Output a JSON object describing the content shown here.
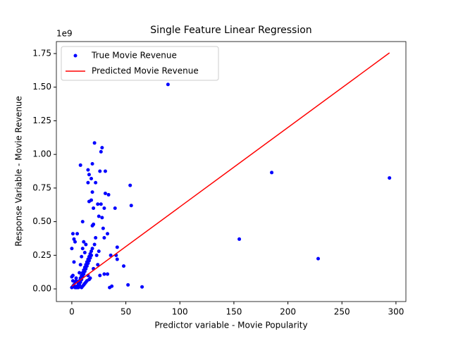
{
  "chart_data": {
    "type": "scatter",
    "title": "Single Feature Linear Regression",
    "x_label": "Predictor variable - Movie Popularity",
    "y_label": "Response Variable - Movie Revenue",
    "y_offset_label": "1e9",
    "xlim": [
      -14.3,
      309.2
    ],
    "ylim": [
      -0.094,
      1.839
    ],
    "xticks": [
      0,
      50,
      100,
      150,
      200,
      250,
      300
    ],
    "yticks": [
      {
        "value": 0,
        "label": "0.00"
      },
      0.25,
      {
        "value": 0.5,
        "label": "0.50"
      },
      0.75,
      {
        "value": 1,
        "label": "1.00"
      },
      1.25,
      {
        "value": 1.5,
        "label": "1.50"
      },
      1.75
    ],
    "legend": "upper left",
    "series": [
      {
        "name": "True Movie Revenue",
        "color": "#0000ff",
        "type": "scatter",
        "x": [
          89,
          185,
          294,
          155,
          228,
          65,
          52,
          54,
          55,
          42,
          41,
          42,
          48,
          40,
          33,
          35,
          37,
          36,
          27,
          28,
          21,
          31,
          26,
          8,
          19,
          15,
          16,
          18,
          22,
          15,
          19,
          31,
          34,
          16,
          18,
          24,
          27,
          30,
          20,
          25,
          28,
          10,
          19,
          20,
          29,
          1,
          5,
          2,
          3,
          22,
          30,
          25,
          30,
          33,
          0,
          2,
          1,
          3,
          0,
          1,
          2,
          4,
          5,
          6,
          7,
          8,
          9,
          10,
          11,
          12,
          13,
          14,
          15,
          16,
          17,
          18,
          19,
          20,
          6,
          7,
          8,
          9,
          10,
          11,
          12,
          13,
          14,
          15,
          16,
          17,
          18,
          4,
          5,
          6,
          7,
          8,
          9,
          10,
          11,
          12,
          13,
          14,
          15,
          9,
          10,
          11,
          12,
          13,
          14,
          16,
          17,
          23,
          24,
          21,
          26,
          0,
          1,
          2,
          3,
          4
        ],
        "values": [
          1.52,
          0.865,
          0.825,
          0.37,
          0.225,
          0.015,
          0.03,
          0.77,
          0.62,
          0.31,
          0.25,
          0.22,
          0.17,
          0.6,
          0.41,
          0.01,
          0.02,
          0.25,
          1.02,
          1.05,
          1.085,
          0.875,
          0.875,
          0.92,
          0.93,
          0.885,
          0.85,
          0.82,
          0.79,
          0.79,
          0.72,
          0.71,
          0.7,
          0.65,
          0.66,
          0.63,
          0.63,
          0.6,
          0.6,
          0.54,
          0.53,
          0.5,
          0.47,
          0.48,
          0.45,
          0.41,
          0.41,
          0.37,
          0.35,
          0.38,
          0.38,
          0.28,
          0.11,
          0.11,
          0.3,
          0.2,
          0.1,
          0.05,
          0.01,
          0.02,
          0.03,
          0.01,
          0.02,
          0.04,
          0.06,
          0.08,
          0.1,
          0.12,
          0.14,
          0.16,
          0.18,
          0.2,
          0.22,
          0.24,
          0.26,
          0.28,
          0.3,
          0.15,
          0.01,
          0.03,
          0.05,
          0.07,
          0.09,
          0.11,
          0.13,
          0.15,
          0.17,
          0.19,
          0.21,
          0.23,
          0.25,
          0.06,
          0.01,
          0.02,
          0.12,
          0.18,
          0.24,
          0.3,
          0.35,
          0.27,
          0.33,
          0.2,
          0.1,
          0.01,
          0.02,
          0.03,
          0.04,
          0.05,
          0.06,
          0.07,
          0.08,
          0.25,
          0.18,
          0.33,
          0.1,
          0.09,
          0.06,
          0.03,
          0.01,
          0.08
        ]
      },
      {
        "name": "Predicted Movie Revenue",
        "color": "#ff0000",
        "type": "line",
        "x": [
          0,
          294
        ],
        "values": [
          0.02,
          1.755
        ]
      }
    ]
  }
}
